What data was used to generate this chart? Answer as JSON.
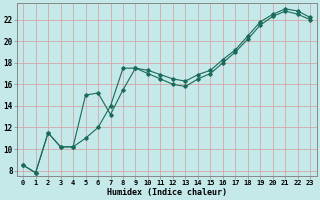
{
  "xlabel": "Humidex (Indice chaleur)",
  "bg_color": "#c5e8e8",
  "grid_color": "#d4a8a8",
  "line_color": "#1a6b5a",
  "xlim": [
    -0.5,
    23.5
  ],
  "ylim": [
    7.5,
    23.5
  ],
  "xticks": [
    0,
    1,
    2,
    3,
    4,
    5,
    6,
    7,
    8,
    9,
    10,
    11,
    12,
    13,
    14,
    15,
    16,
    17,
    18,
    19,
    20,
    21,
    22,
    23
  ],
  "yticks": [
    8,
    10,
    12,
    14,
    16,
    18,
    20,
    22
  ],
  "curve1_x": [
    0,
    1,
    2,
    3,
    4,
    5,
    6,
    7,
    8,
    9,
    10,
    11,
    12,
    13,
    14,
    15,
    16,
    17,
    18,
    19,
    20,
    21,
    22,
    23
  ],
  "curve1_y": [
    8.5,
    7.8,
    11.5,
    10.2,
    10.2,
    15.0,
    15.2,
    13.2,
    15.5,
    17.5,
    17.3,
    16.9,
    16.5,
    16.3,
    16.9,
    17.3,
    18.3,
    19.2,
    20.5,
    21.8,
    22.5,
    23.0,
    22.8,
    22.2
  ],
  "curve2_x": [
    0,
    1,
    2,
    3,
    4,
    5,
    6,
    7,
    8,
    9,
    10,
    11,
    12,
    13,
    14,
    15,
    16,
    17,
    18,
    19,
    20,
    21,
    22,
    23
  ],
  "curve2_y": [
    8.5,
    7.8,
    11.5,
    10.2,
    10.2,
    11.0,
    12.0,
    14.0,
    17.5,
    17.5,
    17.0,
    16.5,
    16.0,
    15.8,
    16.5,
    17.0,
    18.0,
    19.0,
    20.2,
    21.5,
    22.3,
    22.8,
    22.5,
    22.0
  ],
  "xlabel_fontsize": 6.0,
  "tick_fontsize": 5.0
}
